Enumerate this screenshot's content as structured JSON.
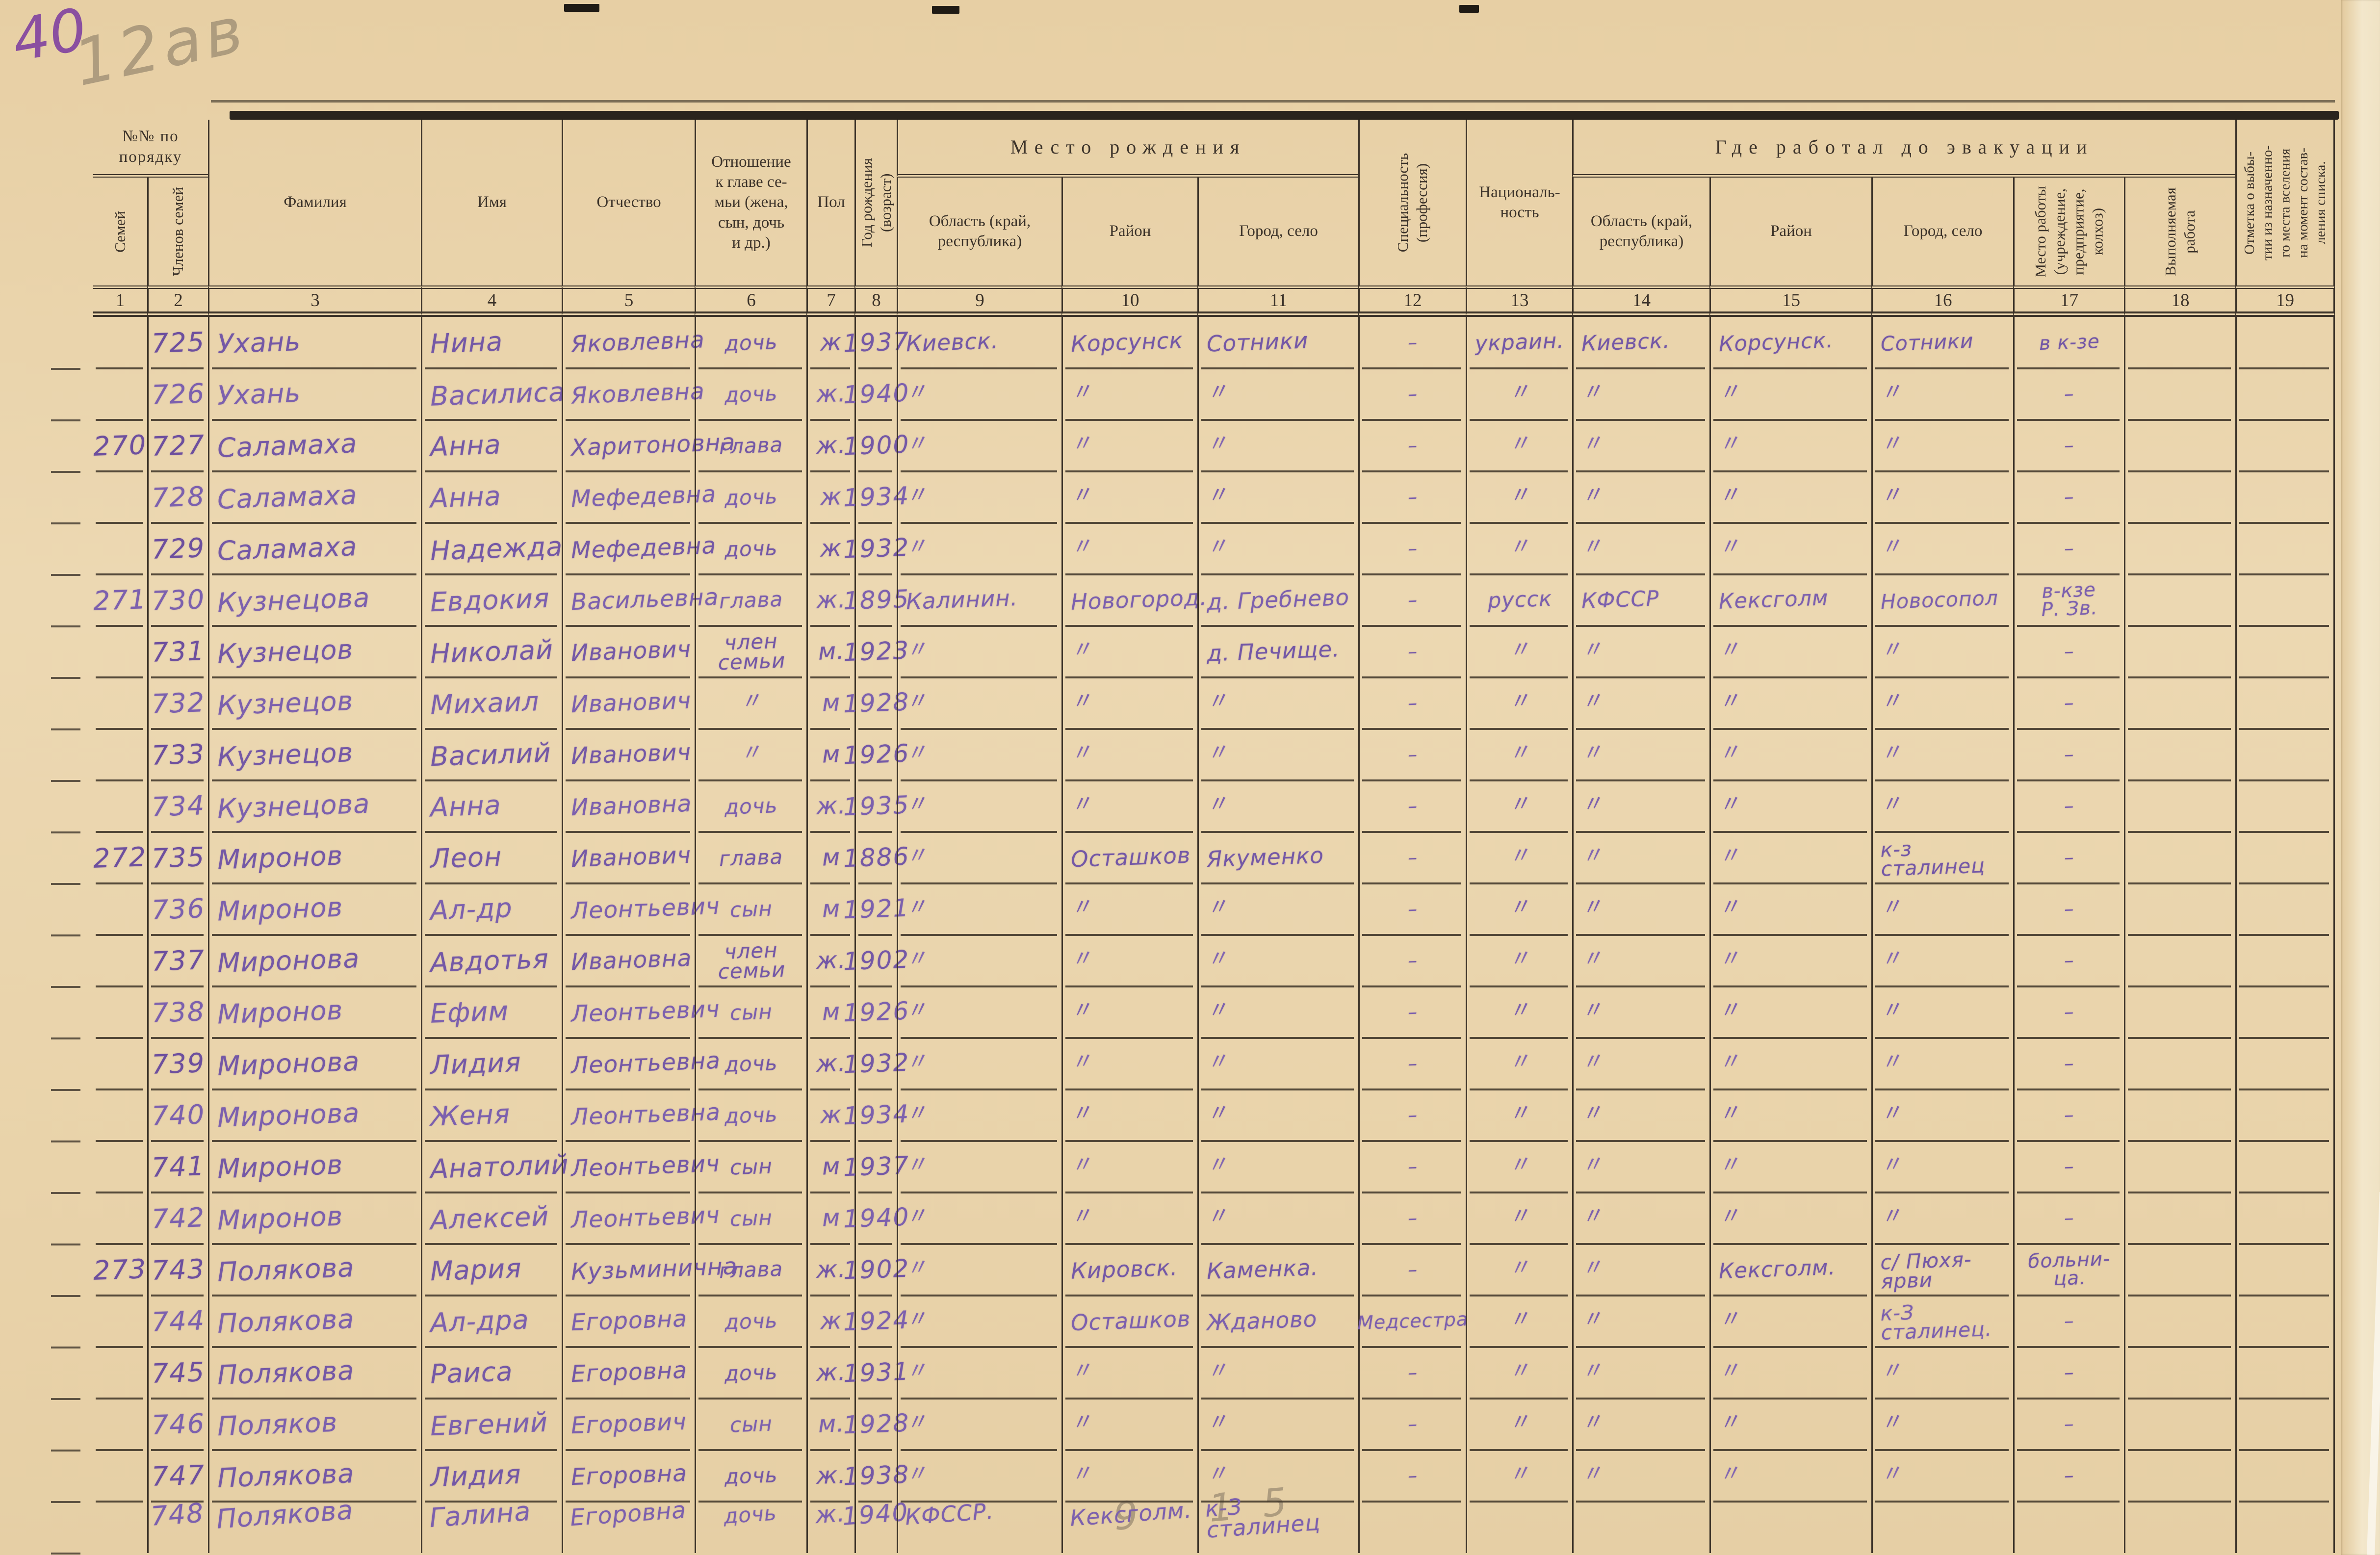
{
  "annotations": {
    "page_number": "40",
    "pencil_note_top": "12ав",
    "pencil_note_bottom": "9 15"
  },
  "header": {
    "group_order": "№№ по\nпорядку",
    "semey": "Семей",
    "chlenov": "Членов семей",
    "familia": "Фамилия",
    "imya": "Имя",
    "otchestvo": "Отчество",
    "otnoshenie": "Отношение\nк главе се-\nмьи (жена,\nсын, дочь\nи др.)",
    "pol": "Пол",
    "god_rozhdeniya": "Год рождения\n(возраст)",
    "mesto_rozhdeniya": "Место рождения",
    "oblast_birth": "Область (край,\nреспублика)",
    "raion_birth": "Район",
    "gorod_birth": "Город, село",
    "spetsialnost": "Специальность\n(профессия)",
    "natsionalnost": "Националь-\nность",
    "gde_rabotal": "Где работал до эвакуации",
    "oblast_work": "Область (край,\nреспублика)",
    "raion_work": "Район",
    "gorod_work": "Город, село",
    "mesto_raboty": "Место работы\n(учреждение,\nпредприятие,\nколхоз)",
    "vypolnyaemaya": "Выполняемая\nработа",
    "otmetka": "Отметка о выбы-\nтии из назначенно-\nго места вселения\nна момент состав-\nления списка.",
    "numbers": [
      "1",
      "2",
      "3",
      "4",
      "5",
      "6",
      "7",
      "8",
      "9",
      "10",
      "11",
      "12",
      "13",
      "14",
      "15",
      "16",
      "17",
      "18",
      "19"
    ]
  },
  "rows": [
    {
      "c": [
        "",
        "725",
        "Ухань",
        "Нина",
        "Яковлевна",
        "дочь",
        "ж",
        "1937",
        "Киевск.",
        "Корсунск",
        "Сотники",
        "–",
        "украин.",
        "Киевск.",
        "Корсунск.",
        "Сотники",
        "в к-зе",
        "",
        ""
      ]
    },
    {
      "c": [
        "",
        "726",
        "Ухань",
        "Василиса",
        "Яковлевна",
        "дочь",
        "ж.",
        "1940",
        "〃",
        "〃",
        "〃",
        "–",
        "〃",
        "〃",
        "〃",
        "〃",
        "–",
        "",
        ""
      ]
    },
    {
      "c": [
        "270",
        "727",
        "Саламаха",
        "Анна",
        "Харитоновна",
        "глава",
        "ж.",
        "1900",
        "〃",
        "〃",
        "〃",
        "–",
        "〃",
        "〃",
        "〃",
        "〃",
        "–",
        "",
        ""
      ]
    },
    {
      "c": [
        "",
        "728",
        "Саламаха",
        "Анна",
        "Мефедевна",
        "дочь",
        "ж",
        "1934",
        "〃",
        "〃",
        "〃",
        "–",
        "〃",
        "〃",
        "〃",
        "〃",
        "–",
        "",
        ""
      ]
    },
    {
      "c": [
        "",
        "729",
        "Саламаха",
        "Надежда",
        "Мефедевна",
        "дочь",
        "ж",
        "1932",
        "〃",
        "〃",
        "〃",
        "–",
        "〃",
        "〃",
        "〃",
        "〃",
        "–",
        "",
        ""
      ]
    },
    {
      "c": [
        "271",
        "730",
        "Кузнецова",
        "Евдокия",
        "Васильевна",
        "глава",
        "ж.",
        "1895",
        "Калинин.",
        "Новогород.",
        "д. Гребнево",
        "–",
        "русск",
        "КФССР",
        "Кексголм",
        "Новосопол",
        "в-кзе\nР. Зв.",
        "",
        ""
      ]
    },
    {
      "c": [
        "",
        "731",
        "Кузнецов",
        "Николай",
        "Иванович",
        "член\nсемьи",
        "м.",
        "1923",
        "〃",
        "〃",
        "д. Печище.",
        "–",
        "〃",
        "〃",
        "〃",
        "〃",
        "–",
        "",
        ""
      ]
    },
    {
      "c": [
        "",
        "732",
        "Кузнецов",
        "Михаил",
        "Иванович",
        "〃",
        "м",
        "1928",
        "〃",
        "〃",
        "〃",
        "–",
        "〃",
        "〃",
        "〃",
        "〃",
        "–",
        "",
        ""
      ]
    },
    {
      "c": [
        "",
        "733",
        "Кузнецов",
        "Василий",
        "Иванович",
        "〃",
        "м",
        "1926",
        "〃",
        "〃",
        "〃",
        "–",
        "〃",
        "〃",
        "〃",
        "〃",
        "–",
        "",
        ""
      ]
    },
    {
      "c": [
        "",
        "734",
        "Кузнецова",
        "Анна",
        "Ивановна",
        "дочь",
        "ж.",
        "1935",
        "〃",
        "〃",
        "〃",
        "–",
        "〃",
        "〃",
        "〃",
        "〃",
        "–",
        "",
        ""
      ]
    },
    {
      "c": [
        "272",
        "735",
        "Миронов",
        "Леон",
        "Иванович",
        "глава",
        "м",
        "1886",
        "〃",
        "Осташков",
        "Якуменко",
        "–",
        "〃",
        "〃",
        "〃",
        "к-з\nсталинец",
        "–",
        "",
        ""
      ]
    },
    {
      "c": [
        "",
        "736",
        "Миронов",
        "Ал-др",
        "Леонтьевич",
        "сын",
        "м",
        "1921",
        "〃",
        "〃",
        "〃",
        "–",
        "〃",
        "〃",
        "〃",
        "〃",
        "–",
        "",
        ""
      ]
    },
    {
      "c": [
        "",
        "737",
        "Миронова",
        "Авдотья",
        "Ивановна",
        "член\nсемьи",
        "ж.",
        "1902",
        "〃",
        "〃",
        "〃",
        "–",
        "〃",
        "〃",
        "〃",
        "〃",
        "–",
        "",
        ""
      ]
    },
    {
      "c": [
        "",
        "738",
        "Миронов",
        "Ефим",
        "Леонтьевич",
        "сын",
        "м",
        "1926",
        "〃",
        "〃",
        "〃",
        "–",
        "〃",
        "〃",
        "〃",
        "〃",
        "–",
        "",
        ""
      ]
    },
    {
      "c": [
        "",
        "739",
        "Миронова",
        "Лидия",
        "Леонтьевна",
        "дочь",
        "ж.",
        "1932",
        "〃",
        "〃",
        "〃",
        "–",
        "〃",
        "〃",
        "〃",
        "〃",
        "–",
        "",
        ""
      ]
    },
    {
      "c": [
        "",
        "740",
        "Миронова",
        "Женя",
        "Леонтьевна",
        "дочь",
        "ж",
        "1934",
        "〃",
        "〃",
        "〃",
        "–",
        "〃",
        "〃",
        "〃",
        "〃",
        "–",
        "",
        ""
      ]
    },
    {
      "c": [
        "",
        "741",
        "Миронов",
        "Анатолий",
        "Леонтьевич",
        "сын",
        "м",
        "1937",
        "〃",
        "〃",
        "〃",
        "–",
        "〃",
        "〃",
        "〃",
        "〃",
        "–",
        "",
        ""
      ]
    },
    {
      "c": [
        "",
        "742",
        "Миронов",
        "Алексей",
        "Леонтьевич",
        "сын",
        "м",
        "1940",
        "〃",
        "〃",
        "〃",
        "–",
        "〃",
        "〃",
        "〃",
        "〃",
        "–",
        "",
        ""
      ]
    },
    {
      "c": [
        "273",
        "743",
        "Полякова",
        "Мария",
        "Кузьминична",
        "глава",
        "ж.",
        "1902",
        "〃",
        "Кировск.",
        "Каменка.",
        "–",
        "〃",
        "〃",
        "Кексголм.",
        "с/ Пюхя-ярви",
        "больни-\nца.",
        "",
        ""
      ]
    },
    {
      "c": [
        "",
        "744",
        "Полякова",
        "Ал-дра",
        "Егоровна",
        "дочь",
        "ж",
        "1924",
        "〃",
        "Осташков",
        "Жданово",
        "Медсестра",
        "〃",
        "〃",
        "〃",
        "к-З\nсталинец.",
        "–",
        "",
        ""
      ]
    },
    {
      "c": [
        "",
        "745",
        "Полякова",
        "Раиса",
        "Егоровна",
        "дочь",
        "ж.",
        "1931",
        "〃",
        "〃",
        "〃",
        "–",
        "〃",
        "〃",
        "〃",
        "〃",
        "–",
        "",
        ""
      ]
    },
    {
      "c": [
        "",
        "746",
        "Поляков",
        "Евгений",
        "Егорович",
        "сын",
        "м.",
        "1928",
        "〃",
        "〃",
        "〃",
        "–",
        "〃",
        "〃",
        "〃",
        "〃",
        "–",
        "",
        ""
      ]
    },
    {
      "c": [
        "",
        "747",
        "Полякова",
        "Лидия",
        "Егоровна",
        "дочь",
        "ж.",
        "1938",
        "〃",
        "〃",
        "〃",
        "–",
        "〃",
        "〃",
        "〃",
        "〃",
        "–",
        "",
        ""
      ]
    },
    {
      "c": [
        "",
        "748",
        "Полякова",
        "Галина",
        "Егоровна",
        "дочь",
        "ж.",
        "1940",
        "КФССР.",
        "Кексголм.",
        "к-З сталинец",
        "",
        "",
        "",
        "",
        "",
        "",
        "",
        ""
      ]
    }
  ]
}
